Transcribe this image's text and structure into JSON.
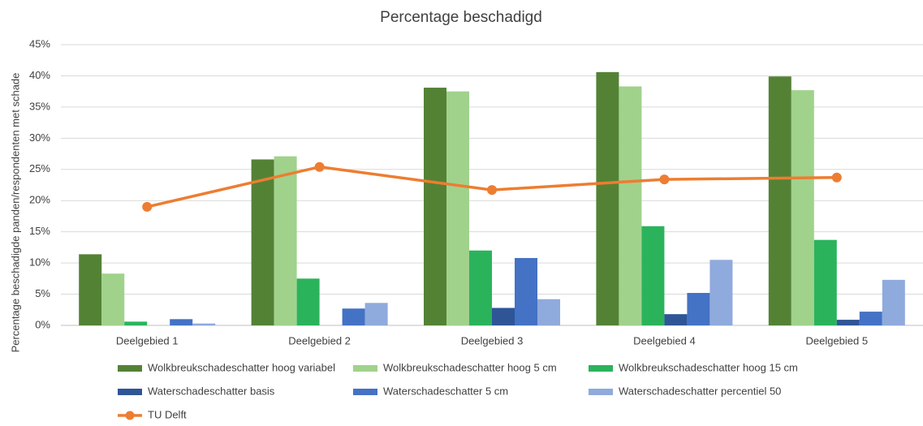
{
  "chart_data": {
    "type": "bar",
    "title": "Percentage beschadigd",
    "y_label": "Percentage beschadigde panden/respondenten met schade",
    "categories": [
      "Deelgebied 1",
      "Deelgebied 2",
      "Deelgebied 3",
      "Deelgebied 4",
      "Deelgebied 5"
    ],
    "series": [
      {
        "name": "Wolkbreukschadeschatter hoog variabel",
        "color": "#548235",
        "values": [
          11.4,
          26.6,
          38.1,
          40.6,
          39.9
        ]
      },
      {
        "name": "Wolkbreukschadeschatter hoog 5 cm",
        "color": "#a0d28c",
        "values": [
          8.3,
          27.1,
          37.5,
          38.3,
          37.7
        ]
      },
      {
        "name": "Wolkbreukschadeschatter hoog 15 cm",
        "color": "#2bb35c",
        "values": [
          0.6,
          7.5,
          12.0,
          15.9,
          13.7
        ]
      },
      {
        "name": "Waterschadeschatter basis",
        "color": "#2f5597",
        "values": [
          0,
          0,
          2.8,
          1.8,
          0.9
        ]
      },
      {
        "name": "Waterschadeschatter 5 cm",
        "color": "#4472c4",
        "values": [
          1.0,
          2.7,
          10.8,
          5.2,
          2.2
        ]
      },
      {
        "name": "Waterschadeschatter percentiel 50",
        "color": "#8faadc",
        "values": [
          0.3,
          3.6,
          4.2,
          10.5,
          7.3
        ]
      },
      {
        "name": "TU Delft",
        "color": "#ed7d31",
        "type": "line",
        "values": [
          19.0,
          25.4,
          21.7,
          23.4,
          23.7
        ]
      }
    ],
    "ylim": [
      0,
      45
    ],
    "yticks": [
      {
        "value": 0,
        "label": "0%"
      },
      {
        "value": 5,
        "label": "5%"
      },
      {
        "value": 10,
        "label": "10%"
      },
      {
        "value": 15,
        "label": "15%"
      },
      {
        "value": 20,
        "label": "20%"
      },
      {
        "value": 25,
        "label": "25%"
      },
      {
        "value": 30,
        "label": "30%"
      },
      {
        "value": 35,
        "label": "35%"
      },
      {
        "value": 40,
        "label": "40%"
      },
      {
        "value": 45,
        "label": "45%"
      }
    ],
    "grid": true,
    "legend": "bottom"
  }
}
